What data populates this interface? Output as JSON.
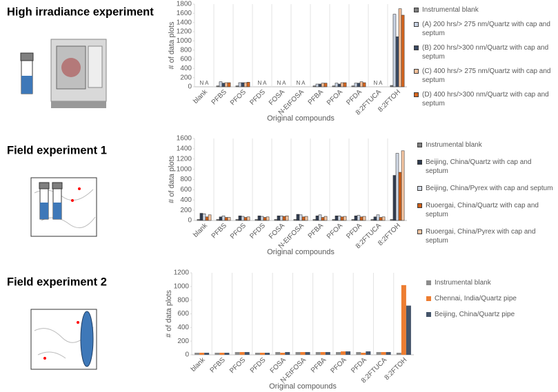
{
  "chart_data": [
    {
      "type": "bar",
      "title": "High irradiance experiment",
      "y_label": "# of data plots",
      "x_label": "Original compounds",
      "categories": [
        "blank",
        "PFBS",
        "PFOS",
        "PFDS",
        "FOSA",
        "N-EtFOSA",
        "PFBA",
        "PFOA",
        "PFDA",
        "8:2FTUCA",
        "8:2FTOH"
      ],
      "missing_label": "N A",
      "edgecolor": "#3a3a3a",
      "ylim": [
        0,
        1800
      ],
      "yticks": [
        0,
        200,
        400,
        600,
        800,
        1000,
        1200,
        1400,
        1600,
        1800
      ],
      "series": [
        {
          "name": "Instrumental blank",
          "color": "#7f7f7f",
          "values": [
            null,
            20,
            20,
            null,
            null,
            null,
            20,
            20,
            20,
            null,
            30
          ]
        },
        {
          "name": "(A) 200 hrs/> 275 nm/Quartz with cap and septum",
          "color": "#c9d3e3",
          "values": [
            null,
            110,
            90,
            null,
            null,
            null,
            60,
            80,
            80,
            null,
            1580
          ]
        },
        {
          "name": "(B) 200 hrs/>300 nm/Quartz with cap and septum",
          "color": "#3b4a63",
          "values": [
            null,
            80,
            90,
            null,
            null,
            null,
            60,
            60,
            80,
            null,
            1090
          ]
        },
        {
          "name": "(C) 400 hrs/> 275 nm/Quartz with cap and septum",
          "color": "#f6c09a",
          "values": [
            null,
            90,
            90,
            null,
            null,
            null,
            80,
            90,
            110,
            null,
            1700
          ]
        },
        {
          "name": "(D) 400 hrs/>300 nm/Quartz with cap and septum",
          "color": "#d9671f",
          "values": [
            null,
            90,
            100,
            null,
            null,
            null,
            80,
            90,
            90,
            null,
            1560
          ]
        }
      ]
    },
    {
      "type": "bar",
      "title": "Field experiment 1",
      "y_label": "# of data plots",
      "x_label": "Original compounds",
      "categories": [
        "blank",
        "PFBS",
        "PFOS",
        "PFDS",
        "FOSA",
        "N-EtFOSA",
        "PFBA",
        "PFOA",
        "PFDA",
        "8:2FTUCA",
        "8:2FTOH"
      ],
      "edgecolor": "#3a3a3a",
      "ylim": [
        0,
        1600
      ],
      "yticks": [
        0,
        200,
        400,
        600,
        800,
        1000,
        1200,
        1400,
        1600
      ],
      "series": [
        {
          "name": "Instrumental blank",
          "color": "#7f7f7f",
          "values": [
            20,
            20,
            20,
            20,
            20,
            20,
            20,
            20,
            20,
            20,
            20
          ]
        },
        {
          "name": "Beijing, China/Quartz with cap and septum",
          "color": "#2f3b4f",
          "values": [
            140,
            70,
            90,
            90,
            90,
            120,
            90,
            90,
            90,
            70,
            880
          ]
        },
        {
          "name": "Beijing, China/Pyrex with cap and septum",
          "color": "#d2dae6",
          "values": [
            130,
            90,
            80,
            80,
            90,
            110,
            110,
            90,
            100,
            110,
            1310
          ]
        },
        {
          "name": "Ruoergai, China/Quartz with cap and septum",
          "color": "#cf5f17",
          "values": [
            70,
            60,
            60,
            60,
            80,
            70,
            60,
            70,
            70,
            60,
            940
          ]
        },
        {
          "name": "Ruoergai, China/Pyrex with cap and septum",
          "color": "#f8c8a4",
          "values": [
            110,
            60,
            70,
            70,
            90,
            80,
            80,
            80,
            80,
            70,
            1360
          ]
        }
      ]
    },
    {
      "type": "bar",
      "title": "Field experiment 2",
      "y_label": "# of data plots",
      "x_label": "Original compounds",
      "categories": [
        "blank",
        "PFBS",
        "PFOS",
        "PFDS",
        "FOSA",
        "N-EtFOSA",
        "PFBA",
        "PFOA",
        "PFDA",
        "8:2FTUCA",
        "8:2FTOH"
      ],
      "edgecolor": "none",
      "ylim": [
        0,
        1200
      ],
      "yticks": [
        0,
        200,
        400,
        600,
        800,
        1000,
        1200
      ],
      "series": [
        {
          "name": "Instrumental blank",
          "color": "#8c8c8c",
          "values": [
            30,
            30,
            40,
            30,
            40,
            40,
            40,
            40,
            40,
            40,
            30
          ]
        },
        {
          "name": "Chennai, India/Quartz pipe",
          "color": "#ed7d31",
          "values": [
            30,
            30,
            40,
            30,
            30,
            40,
            40,
            50,
            30,
            40,
            1020
          ]
        },
        {
          "name": "Beijing, China/Quartz pipe",
          "color": "#44546a",
          "values": [
            30,
            30,
            40,
            30,
            40,
            40,
            40,
            50,
            50,
            40,
            720
          ]
        }
      ]
    }
  ]
}
